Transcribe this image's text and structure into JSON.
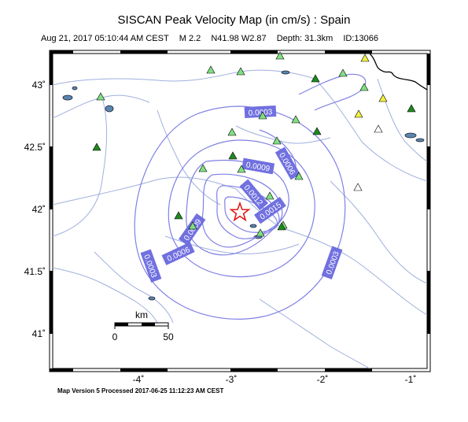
{
  "title": "SISCAN Peak Velocity Map (in cm/s) : Spain",
  "event": {
    "datetime": "Aug 21, 2017 05:10:44 AM CEST",
    "magnitude": "M 2.2",
    "location": "N41.98 W2.87",
    "depth": "Depth: 31.3km",
    "id": "ID:13066"
  },
  "footer": "Map Version 5 Processed 2017-06-25 11:12:23 AM CEST",
  "axes": {
    "lon_ticks": [
      "-4˚",
      "-3˚",
      "-2˚",
      "-1˚"
    ],
    "lat_ticks": [
      "43˚",
      "42.5˚",
      "42˚",
      "41.5˚",
      "41˚"
    ]
  },
  "scale_bar": {
    "unit": "km",
    "start": "0",
    "end": "50"
  },
  "contour_labels": [
    "0.0003",
    "0.0006",
    "0.0009",
    "0.0012",
    "0.0015",
    "0.0009",
    "0.0006",
    "0.0003",
    "0.0003"
  ],
  "colors": {
    "contour": "#8080e6",
    "label_bg": "#7070e0",
    "river": "#a0b0dd",
    "star": "#e01010",
    "station_light": "#80e080",
    "station_dark": "#1f8a1f",
    "station_yellow": "#f0f040",
    "station_white": "#ffffff"
  }
}
